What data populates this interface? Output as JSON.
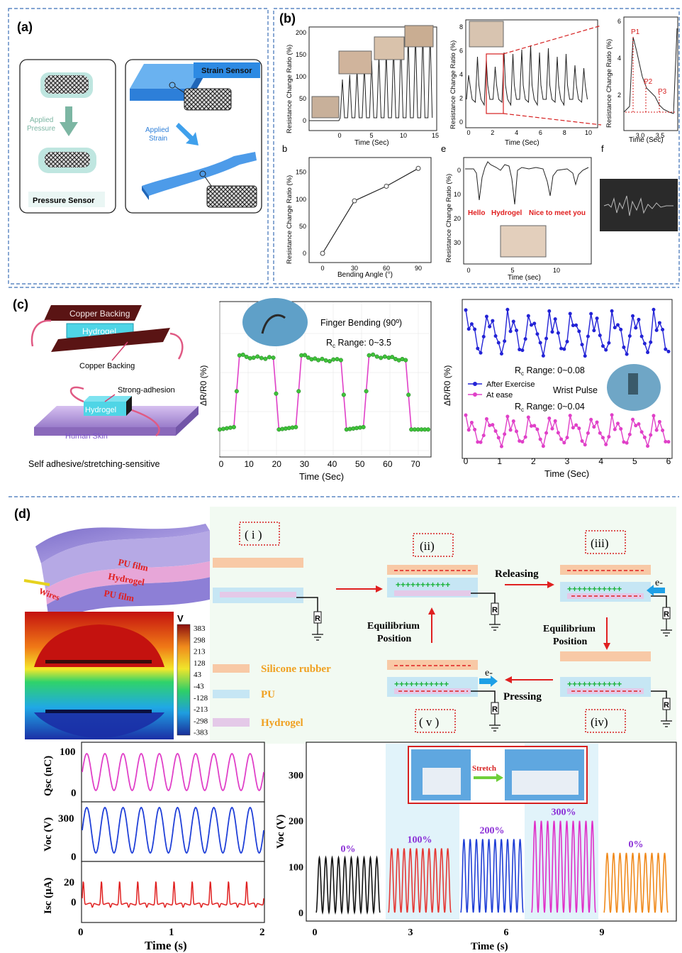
{
  "panels": {
    "a": "(a)",
    "b": "(b)",
    "c": "(c)",
    "d": "(d)"
  },
  "a": {
    "applied_pressure": [
      "Applied",
      "Pressure"
    ],
    "pressure_sensor": "Pressure Sensor",
    "strain_sensor": "Strain Sensor",
    "applied_strain": [
      "Applied",
      "Strain"
    ]
  },
  "b": {
    "chart1": {
      "ylabel": "Resistance Change Ratio (%)",
      "xlabel": "Time (Sec)",
      "xticks": [
        "0",
        "5",
        "10",
        "15"
      ],
      "yticks": [
        "0",
        "50",
        "100",
        "150",
        "200"
      ]
    },
    "chart2": {
      "ylabel": "Resistance Change Ratio (%)",
      "xlabel": "Time (Sec)",
      "xticks": [
        "0",
        "2",
        "4",
        "6",
        "8",
        "10"
      ],
      "yticks": [
        "0",
        "2",
        "4",
        "6",
        "8"
      ]
    },
    "chart3": {
      "ylabel": "Resistance Change Ratio (%)",
      "xlabel": "Time (Sec)",
      "xticks": [
        "3.0",
        "3.5"
      ],
      "yticks": [
        "2",
        "4",
        "6"
      ],
      "p1": "P1",
      "p2": "P2",
      "p3": "P3"
    },
    "chart4": {
      "tag": "b",
      "ylabel": "Resistance Change Ratio (%)",
      "xlabel": "Bending Angle (°)",
      "xticks": [
        "0",
        "30",
        "60",
        "90"
      ],
      "yticks": [
        "0",
        "50",
        "100",
        "150"
      ]
    },
    "chart5": {
      "tag": "e",
      "ylabel": "Resistance Change Ratio (%)",
      "xlabel": "Time (sec)",
      "xticks": [
        "0",
        "5",
        "10"
      ],
      "yticks": [
        "0",
        "10",
        "20",
        "30"
      ],
      "words": [
        "Hello",
        "Hydrogel",
        "Nice to meet you"
      ]
    },
    "chart6": {
      "tag": "f"
    }
  },
  "c": {
    "copper_top": "Copper Backing",
    "hydrogel": "Hydrogel",
    "copper_bottom": "Copper Backing",
    "strong_adhesion": "Strong-adhesion",
    "hydrogel2": "Hydrogel",
    "human_skin": "Human Skin",
    "caption": "Self adhesive/stretching-sensitive",
    "chart1": {
      "title": "Finger Bending (90º)",
      "range_prefix": "R",
      "range_sub": "c",
      "range_text": " Range: 0~3.5",
      "ylabel": "ΔR/R0 (%)",
      "xlabel": "Time (Sec)",
      "xticks": [
        "0",
        "10",
        "20",
        "30",
        "40",
        "50",
        "60",
        "70"
      ]
    },
    "chart2": {
      "range1": " Range: 0~0.08",
      "range2": " Range: 0~0.04",
      "range_prefix": "R",
      "range_sub": "c",
      "legend1": "After Exercise",
      "legend2": "At ease",
      "wrist": "Wrist Pulse",
      "ylabel": "ΔR/R0 (%)",
      "xlabel": "Time (Sec)",
      "xticks": [
        "0",
        "1",
        "2",
        "3",
        "4",
        "5",
        "6"
      ]
    }
  },
  "d": {
    "pu_film_top": "PU film",
    "hydrogel": "Hydrogel",
    "pu_film_bottom": "PU film",
    "wires": "Wires",
    "colorbar_unit": "V",
    "colorbar_ticks": [
      "383",
      "298",
      "213",
      "128",
      "43",
      "-43",
      "-128",
      "-213",
      "-298",
      "-383"
    ],
    "steps": [
      "( i )",
      "(ii)",
      "(iii)",
      "(iv)",
      "( v )"
    ],
    "releasing": "Releasing",
    "pressing": "Pressing",
    "equilibrium": [
      "Equilibrium",
      "Position"
    ],
    "e_minus": "e-",
    "resistor": "R",
    "legend": [
      "Silicone rubber",
      "PU",
      "Hydrogel"
    ],
    "plus_row": "+++++++++++",
    "stack": {
      "qsc_label": "Qsc (nC)",
      "qsc_ticks": [
        "100",
        "0"
      ],
      "voc_label": "Voc (V)",
      "voc_ticks": [
        "300",
        "0"
      ],
      "isc_label": "Isc (μA)",
      "isc_ticks": [
        "20",
        "0"
      ],
      "xticks": [
        "0",
        "1",
        "2"
      ],
      "xlabel": "Time (s)"
    },
    "voc_chart": {
      "ylabel": "Voc (V)",
      "yticks": [
        "0",
        "100",
        "200",
        "300"
      ],
      "xticks": [
        "0",
        "3",
        "6",
        "9"
      ],
      "xlabel": "Time (s)",
      "strains": [
        "0%",
        "100%",
        "200%",
        "300%",
        "0%"
      ],
      "stretch": "Stretch",
      "series": [
        {
          "label": "0%",
          "color": "#111111",
          "amplitude": 120
        },
        {
          "label": "100%",
          "color": "#e53935",
          "amplitude": 140
        },
        {
          "label": "200%",
          "color": "#1f3fd6",
          "amplitude": 160
        },
        {
          "label": "300%",
          "color": "#e02fc8",
          "amplitude": 200
        },
        {
          "label": "0%",
          "color": "#f08a1c",
          "amplitude": 130
        }
      ]
    }
  },
  "chart_data": [
    {
      "type": "line",
      "ylabel": "Resistance Change Ratio (%)",
      "xlabel": "Time (Sec)",
      "xlim": [
        0,
        15
      ],
      "ylim": [
        0,
        200
      ],
      "x": [
        0,
        2,
        4,
        6,
        8,
        10,
        12,
        14
      ],
      "y": [
        10,
        100,
        120,
        150,
        170,
        190,
        195,
        200
      ]
    },
    {
      "type": "line",
      "ylabel": "Resistance Change Ratio (%)",
      "xlabel": "Bending Angle (°)",
      "x": [
        0,
        30,
        60,
        90
      ],
      "y": [
        0,
        97,
        124,
        157
      ],
      "xlim": [
        0,
        90
      ],
      "ylim": [
        0,
        160
      ]
    },
    {
      "type": "line",
      "ylabel": "ΔR/R0 (%)",
      "xlabel": "Time (Sec)",
      "xlim": [
        0,
        75
      ],
      "series": [
        {
          "name": "Finger Bending (90º)",
          "x": [
            0,
            5,
            7,
            12,
            19,
            21,
            27,
            29,
            35,
            43,
            45,
            51,
            53,
            60,
            66,
            68,
            74
          ],
          "y": [
            0.2,
            0.3,
            3.3,
            3.2,
            3.2,
            0.2,
            0.3,
            3.3,
            3.1,
            3.1,
            0.2,
            0.3,
            3.3,
            3.2,
            3.1,
            0.2,
            0.2
          ]
        }
      ]
    },
    {
      "type": "line",
      "ylabel": "ΔR/R0 (%)",
      "xlabel": "Time (Sec)",
      "xlim": [
        0,
        6
      ],
      "series": [
        {
          "name": "After Exercise",
          "range": [
            0,
            0.08
          ]
        },
        {
          "name": "At ease",
          "range": [
            0,
            0.04
          ]
        }
      ]
    },
    {
      "type": "line",
      "ylabel": "Voc (V)",
      "xlabel": "Time (s)",
      "xlim": [
        0,
        11.5
      ],
      "ylim": [
        0,
        350
      ],
      "series": [
        {
          "name": "0%",
          "peak": 120
        },
        {
          "name": "100%",
          "peak": 140
        },
        {
          "name": "200%",
          "peak": 160
        },
        {
          "name": "300%",
          "peak": 200
        },
        {
          "name": "0%",
          "peak": 130
        }
      ]
    }
  ]
}
